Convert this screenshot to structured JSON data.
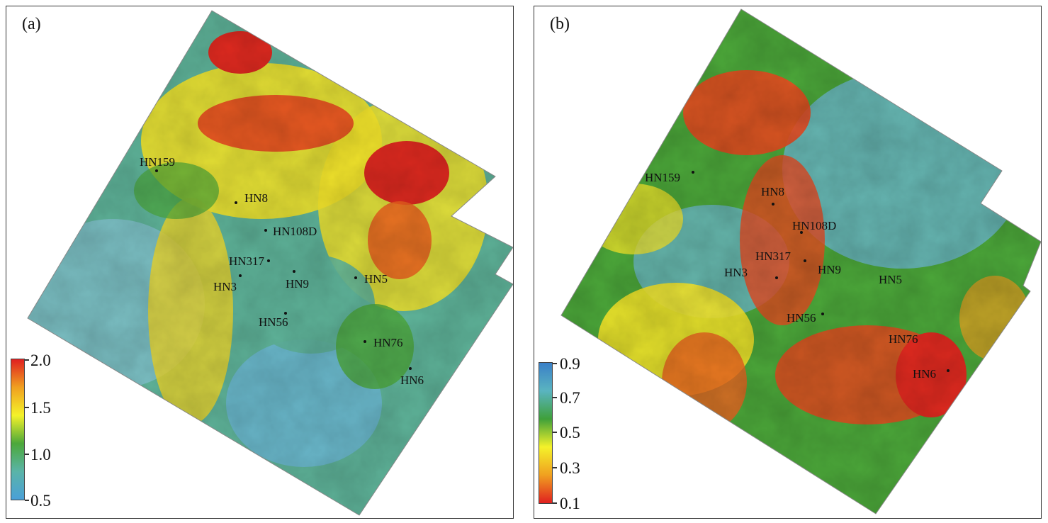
{
  "panels": [
    {
      "label": "(a)",
      "colorbar": {
        "ticks": [
          "2.0",
          "1.5",
          "1.0",
          "0.5"
        ],
        "colors_top_to_bottom": [
          "#e02020",
          "#f0a020",
          "#f4f22a",
          "#4ca83a",
          "#5ab4a8",
          "#4aa0d8"
        ]
      },
      "wells": [
        "HN159",
        "HN8",
        "HN108D",
        "HN317",
        "HN3",
        "HN9",
        "HN5",
        "HN56",
        "HN76",
        "HN6"
      ]
    },
    {
      "label": "(b)",
      "colorbar": {
        "ticks": [
          "0.9",
          "0.7",
          "0.5",
          "0.3",
          "0.1"
        ],
        "colors_top_to_bottom": [
          "#3a80c8",
          "#5ab4c0",
          "#3fa03a",
          "#f4f22a",
          "#f0a020",
          "#e02020"
        ]
      },
      "wells": [
        "HN159",
        "HN8",
        "HN108D",
        "HN317",
        "HN9",
        "HN3",
        "HN5",
        "HN56",
        "HN76",
        "HN6"
      ]
    }
  ]
}
